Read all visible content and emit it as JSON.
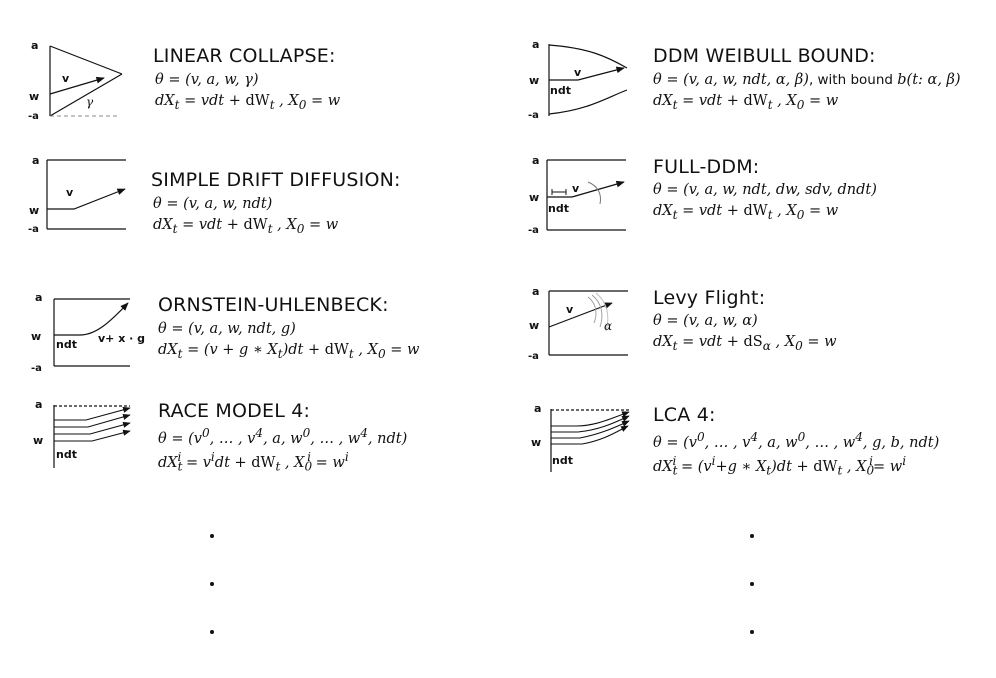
{
  "models": {
    "linear_collapse": {
      "title": "LINEAR COLLAPSE:",
      "param_line": "θ = (v, a, w, γ)",
      "sde_line": "dX_t = vdt + dW_t , X_0 = w",
      "labels": {
        "a": "a",
        "w": "w",
        "neg_a": "-a",
        "drift": "v",
        "slope": "γ"
      }
    },
    "simple_ddm": {
      "title": "SIMPLE DRIFT DIFFUSION:",
      "param_line": "θ = (v, a, w, ndt)",
      "sde_line": "dX_t = vdt + dW_t , X_0 = w",
      "labels": {
        "a": "a",
        "w": "w",
        "neg_a": "-a",
        "drift": "v"
      }
    },
    "ornstein": {
      "title": "ORNSTEIN-UHLENBECK:",
      "param_line": "θ = (v, a, w, ndt, g)",
      "sde_line": "dX_t = (v + g ∗ X_t)dt + dW_t , X_0 = w",
      "labels": {
        "a": "a",
        "w": "w",
        "neg_a": "-a",
        "ndt": "ndt",
        "drift": "v+ x · g"
      }
    },
    "race4": {
      "title": "RACE MODEL 4:",
      "param_line": "θ = (v⁰, … , v⁴, a, w⁰, … , w⁴, ndt)",
      "sde_line": "dX_t^i = v^i dt + dW_t , X_0^i = w^i",
      "labels": {
        "a": "a",
        "w": "w",
        "ndt": "ndt"
      }
    },
    "weibull": {
      "title": "DDM WEIBULL BOUND:",
      "param_line": "θ = (v, a, w, ndt, α, β)",
      "param_note": ", with bound ",
      "bound_expr": "b(t: α, β)",
      "sde_line": "dX_t = vdt + dW_t , X_0 = w",
      "labels": {
        "a": "a",
        "w": "w",
        "neg_a": "-a",
        "ndt": "ndt",
        "drift": "v"
      }
    },
    "full_ddm": {
      "title": "FULL-DDM:",
      "param_line": "θ = (v, a, w, ndt, dw, sdv, dndt)",
      "sde_line": "dX_t = vdt + dW_t , X_0 = w",
      "labels": {
        "a": "a",
        "w": "w",
        "neg_a": "-a",
        "ndt": "ndt",
        "drift": "v"
      }
    },
    "levy": {
      "title": "Levy Flight:",
      "param_line": "θ = (v, a, w, α)",
      "sde_line": "dX_t = vdt + dS_α , X_0 = w",
      "labels": {
        "a": "a",
        "w": "w",
        "neg_a": "-a",
        "drift": "v",
        "alpha": "α"
      }
    },
    "lca4": {
      "title": "LCA 4:",
      "param_line": "θ = (v⁰, … , v⁴, a, w⁰, … , w⁴, g, b, ndt)",
      "sde_line": "dX_t^i = (v^i+g ∗ X_t)dt + dW_t , X_0^i= w^i",
      "labels": {
        "a": "a",
        "w": "w",
        "ndt": "ndt"
      }
    }
  },
  "continuation": "⋮"
}
